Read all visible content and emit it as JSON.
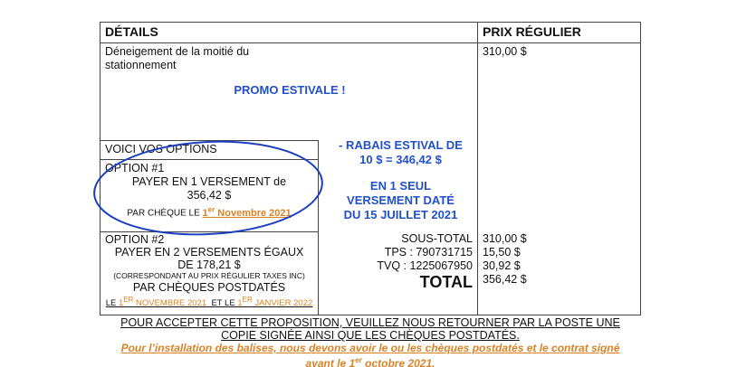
{
  "header": {
    "details": "DÉTAILS",
    "price": "PRIX RÉGULIER"
  },
  "item": {
    "description": "Déneigement de la moitié du stationnement",
    "price": "310,00 $"
  },
  "promo": {
    "title": "PROMO ESTIVALE !",
    "discount_line1": "- RABAIS ESTIVAL DE",
    "discount_line2": "10 $ = 346,42 $",
    "single_line1": "EN 1 SEUL",
    "single_line2": "VERSEMENT DATÉ",
    "single_line3": "DU 15 JUILLET 2021"
  },
  "options": {
    "title": "VOICI VOS OPTIONS",
    "option1": {
      "label": "OPTION #1",
      "line1": "PAYER EN 1 VERSEMENT de",
      "line2": "356,42 $",
      "line3_prefix": "PAR CHÈQUE LE ",
      "date_num": "1",
      "date_sup": "er",
      "date_rest": " Novembre 2021"
    },
    "option2": {
      "label": "OPTION #2",
      "line1": "PAYER EN 2 VERSEMENTS ÉGAUX",
      "line2": "DE 178,21 $",
      "line3": "(CORRESPONDANT AU PRIX RÉGULIER TAXES INC)",
      "line4": "PAR CHÈQUES POSTDATÉS",
      "d_le1": "LE ",
      "d1_num": "1",
      "d1_sup": "ER",
      "d1_rest": " NOVEMBRE 2021",
      "d_le2": "  ET LE ",
      "d2_num": "1",
      "d2_sup": "ER",
      "d2_rest": " JANVIER 2022"
    }
  },
  "totals": {
    "rows": [
      {
        "label": "SOUS-TOTAL",
        "value": "310,00 $"
      },
      {
        "label": "TPS : 790731715",
        "value": "15,50 $"
      },
      {
        "label": "TVQ : 1225067950",
        "value": "30,92 $"
      },
      {
        "label": "TOTAL",
        "value": "356,42 $"
      }
    ]
  },
  "footer": {
    "accept_line1": "POUR ACCEPTER CETTE PROPOSITION, VEUILLEZ NOUS RETOURNER PAR LA POSTE UNE",
    "accept_line2": "COPIE SIGNÉE AINSI QUE LES CHÈQUES POSTDATÉS.",
    "install_line1": "Pour l’installation des balises, nous devons avoir le ou les chèques postdatés et le contrat signé",
    "install_prefix": "avant le 1",
    "install_sup": "er",
    "install_rest": " octobre 2021."
  },
  "colors": {
    "blue_text": "#2150c8",
    "orange": "#d98326",
    "circle": "#1c3fbf"
  }
}
